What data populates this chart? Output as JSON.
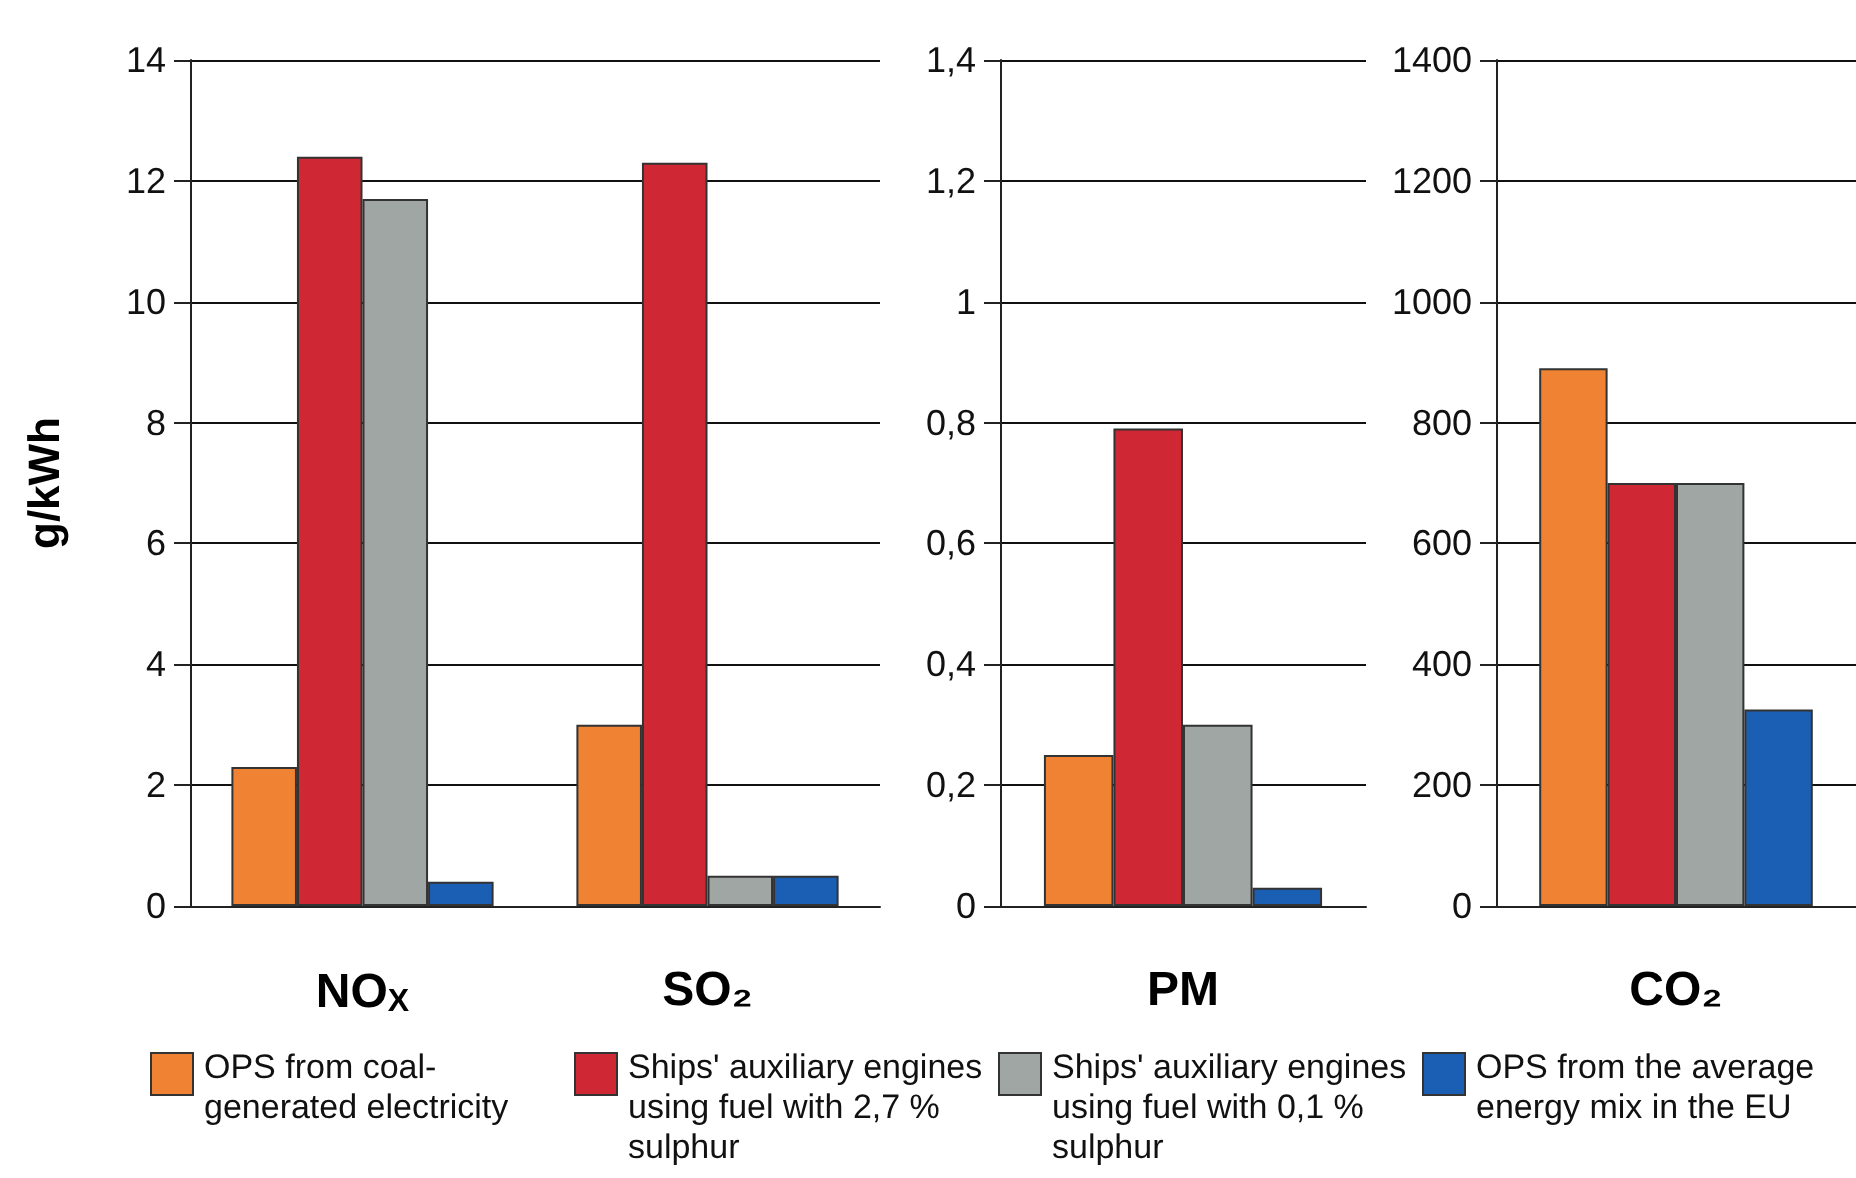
{
  "chart_data": [
    {
      "type": "bar",
      "ylabel": "g/kWh",
      "categories": [
        "NO$_{X}$",
        "SO₂"
      ],
      "ylim": [
        0,
        14
      ],
      "yticks": [
        0,
        2,
        4,
        6,
        8,
        10,
        12,
        14
      ],
      "grid": "y",
      "legend": "bottom",
      "series": [
        {
          "name": "OPS from coal-generated electricity",
          "color": "#ef8333",
          "values": [
            2.3,
            3.0
          ]
        },
        {
          "name": "Ships' auxiliary engines using fuel with 2,7 % sulphur",
          "color": "#cf2734",
          "values": [
            12.4,
            12.3
          ]
        },
        {
          "name": "Ships' auxiliary engines using fuel with 0,1 % sulphur",
          "color": "#a0a6a4",
          "values": [
            11.7,
            0.5
          ]
        },
        {
          "name": "OPS from the average energy mix in the EU",
          "color": "#1b5fb5",
          "values": [
            0.4,
            0.5
          ]
        }
      ]
    },
    {
      "type": "bar",
      "categories": [
        "PM"
      ],
      "ylim": [
        0,
        1.4
      ],
      "yticks": [
        0,
        {
          "value": 0.2,
          "label": "0,2"
        },
        {
          "value": 0.4,
          "label": "0,4"
        },
        {
          "value": 0.6,
          "label": "0,6"
        },
        {
          "value": 0.8,
          "label": "0,8"
        },
        1,
        {
          "value": 1.2,
          "label": "1,2"
        },
        {
          "value": 1.4,
          "label": "1,4"
        }
      ],
      "grid": "y",
      "series": [
        {
          "color": "#ef8333",
          "values": [
            0.25
          ]
        },
        {
          "color": "#cf2734",
          "values": [
            0.79
          ]
        },
        {
          "color": "#a0a6a4",
          "values": [
            0.3
          ]
        },
        {
          "color": "#1b5fb5",
          "values": [
            0.03
          ]
        }
      ]
    },
    {
      "type": "bar",
      "categories": [
        "CO₂"
      ],
      "ylim": [
        0,
        1400
      ],
      "yticks": [
        0,
        200,
        400,
        600,
        800,
        1000,
        1200,
        1400
      ],
      "grid": "y",
      "series": [
        {
          "color": "#ef8333",
          "values": [
            890
          ]
        },
        {
          "color": "#cf2734",
          "values": [
            700
          ]
        },
        {
          "color": "#a0a6a4",
          "values": [
            700
          ]
        },
        {
          "color": "#1b5fb5",
          "values": [
            325
          ]
        }
      ]
    }
  ]
}
